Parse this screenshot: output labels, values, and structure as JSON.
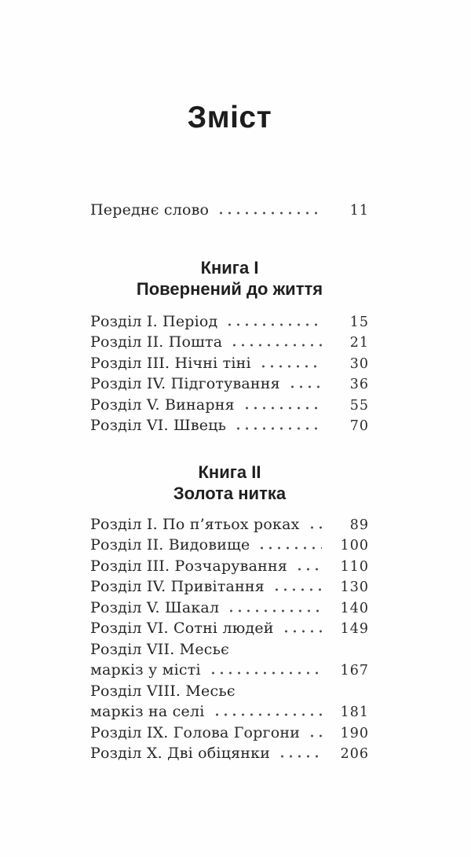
{
  "document": {
    "title": "Зміст",
    "front_matter": {
      "label": "Переднє слово",
      "page": "11"
    },
    "books": [
      {
        "heading": "Книга I",
        "subtitle": "Повернений до життя",
        "entries": [
          {
            "label": "Розділ I. Період",
            "page": "15"
          },
          {
            "label": "Розділ II. Пошта",
            "page": "21"
          },
          {
            "label": "Розділ III. Нічні тіні",
            "page": "30"
          },
          {
            "label": "Розділ IV. Підготування",
            "page": "36"
          },
          {
            "label": "Розділ V. Винарня",
            "page": "55"
          },
          {
            "label": "Розділ VI. Швець",
            "page": "70"
          }
        ]
      },
      {
        "heading": "Книга II",
        "subtitle": "Золота нитка",
        "entries": [
          {
            "label": "Розділ I. По п’ятьох роках",
            "page": "89"
          },
          {
            "label": "Розділ II. Видовище",
            "page": "100"
          },
          {
            "label": "Розділ III. Розчарування",
            "page": "110"
          },
          {
            "label": "Розділ IV. Привітання",
            "page": "130"
          },
          {
            "label": "Розділ V. Шакал",
            "page": "140"
          },
          {
            "label": "Розділ VI. Сотні людей",
            "page": "149"
          },
          {
            "label": "Розділ VII. Месьє",
            "page": null
          },
          {
            "label": "маркіз у місті",
            "page": "167"
          },
          {
            "label": "Розділ VIII. Месьє",
            "page": null
          },
          {
            "label": "маркіз на селі",
            "page": "181"
          },
          {
            "label": "Розділ IX. Голова Горгони",
            "page": "190"
          },
          {
            "label": "Розділ X. Дві обіцянки",
            "page": "206"
          }
        ]
      }
    ],
    "colors": {
      "background": "#fefefe",
      "text": "#262626",
      "dot_leader": "#4a4a4a"
    }
  }
}
